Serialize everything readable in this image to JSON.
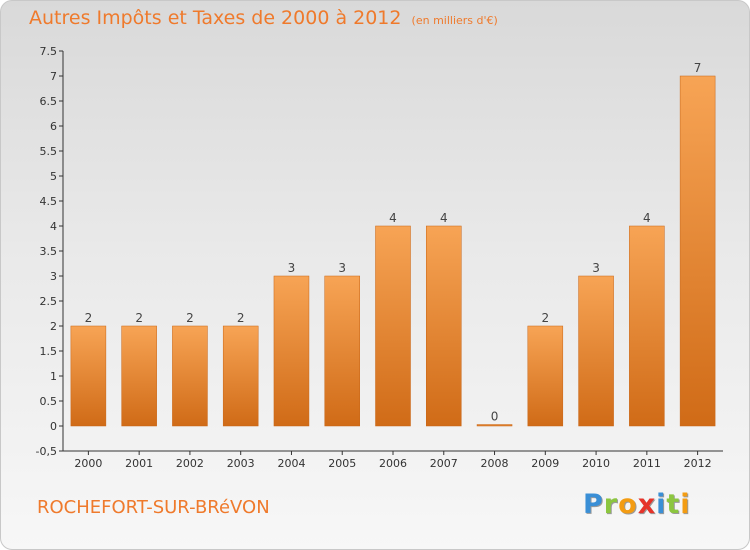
{
  "header": {
    "title": "Autres Impôts et Taxes de 2000 à 2012",
    "unit": "(en milliers d'€)"
  },
  "footer": {
    "commune": "ROCHEFORT-SUR-BRéVON",
    "logo_letters": [
      {
        "char": "P",
        "color": "#3a8fd6"
      },
      {
        "char": "r",
        "color": "#8cc63f"
      },
      {
        "char": "o",
        "color": "#f39c12"
      },
      {
        "char": "x",
        "color": "#e6332a"
      },
      {
        "char": "i",
        "color": "#3a8fd6"
      },
      {
        "char": "t",
        "color": "#8cc63f"
      },
      {
        "char": "i",
        "color": "#f39c12"
      }
    ]
  },
  "colors": {
    "title": "#ef7a2c",
    "bar_light": "#f7a455",
    "bar_dark": "#d06b17"
  },
  "chart_data": {
    "type": "bar",
    "categories": [
      "2000",
      "2001",
      "2002",
      "2003",
      "2004",
      "2005",
      "2006",
      "2007",
      "2008",
      "2009",
      "2010",
      "2011",
      "2012"
    ],
    "values": [
      2,
      2,
      2,
      2,
      3,
      3,
      4,
      4,
      0,
      2,
      3,
      4,
      7
    ],
    "value_labels": [
      "2",
      "2",
      "2",
      "2",
      "3",
      "3",
      "4",
      "4",
      "0",
      "2",
      "3",
      "4",
      "7"
    ],
    "ylim": [
      -0.5,
      7.5
    ],
    "yticks": [
      "-0,5",
      "0",
      "0.5",
      "1",
      "1.5",
      "2",
      "2.5",
      "3",
      "3.5",
      "4",
      "4.5",
      "5",
      "5.5",
      "6",
      "6.5",
      "7",
      "7.5"
    ],
    "ytick_values": [
      -0.5,
      0,
      0.5,
      1,
      1.5,
      2,
      2.5,
      3,
      3.5,
      4,
      4.5,
      5,
      5.5,
      6,
      6.5,
      7,
      7.5
    ],
    "grid": false,
    "legend": "none"
  }
}
